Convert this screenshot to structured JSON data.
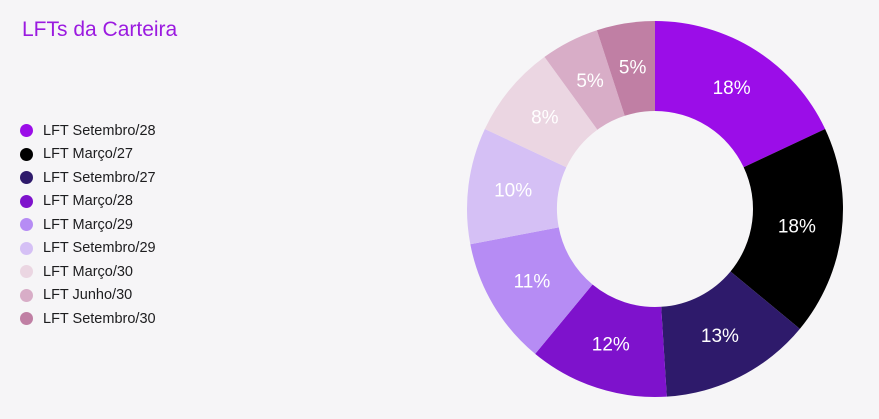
{
  "chart_data": {
    "type": "pie",
    "title": "LFTs da Carteira",
    "legend_position": "left",
    "series": [
      {
        "name": "LFT Setembro/28",
        "value": 18,
        "label": "18%",
        "color": "#9b0de8",
        "label_color": "#ffffff"
      },
      {
        "name": "LFT Março/27",
        "value": 18,
        "label": "18%",
        "color": "#000000",
        "label_color": "#ffffff"
      },
      {
        "name": "LFT Setembro/27",
        "value": 13,
        "label": "13%",
        "color": "#2e1a6b",
        "label_color": "#ffffff"
      },
      {
        "name": "LFT Março/28",
        "value": 12,
        "label": "12%",
        "color": "#7e12cc",
        "label_color": "#ffffff"
      },
      {
        "name": "LFT Março/29",
        "value": 11,
        "label": "11%",
        "color": "#b68cf4",
        "label_color": "#ffffff"
      },
      {
        "name": "LFT Setembro/29",
        "value": 10,
        "label": "10%",
        "color": "#d5c0f5",
        "label_color": "#ffffff"
      },
      {
        "name": "LFT Março/30",
        "value": 8,
        "label": "8%",
        "color": "#ebd6e2",
        "label_color": "#ffffff"
      },
      {
        "name": "LFT Junho/30",
        "value": 5,
        "label": "5%",
        "color": "#d8adc7",
        "label_color": "#ffffff"
      },
      {
        "name": "LFT Setembro/30",
        "value": 5,
        "label": "5%",
        "color": "#c07fa4",
        "label_color": "#ffffff"
      }
    ]
  }
}
